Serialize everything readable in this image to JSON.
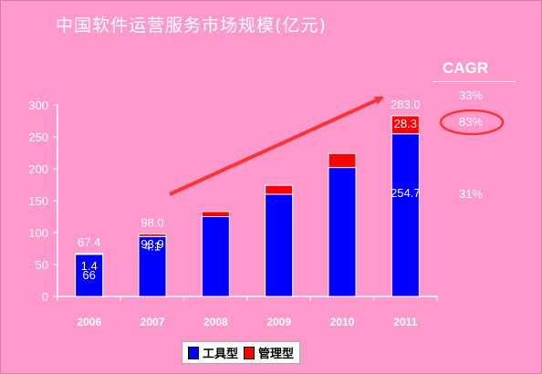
{
  "title": "中国软件运营服务市场规模(亿元)",
  "colors": {
    "background": "#ff99cc",
    "tool": "#0000ff",
    "management": "#ff0000",
    "arrow": "#ff3333",
    "circle": "#ff3333"
  },
  "chart_data": {
    "type": "bar",
    "stacked": true,
    "title": "中国软件运营服务市场规模(亿元)",
    "categories": [
      "2006",
      "2007",
      "2008",
      "2009",
      "2010",
      "2011"
    ],
    "series": [
      {
        "name": "工具型",
        "values": [
          66,
          93.9,
          125,
          160,
          202,
          254.7
        ]
      },
      {
        "name": "管理型",
        "values": [
          1.4,
          4.1,
          8,
          14,
          22,
          28.3
        ]
      }
    ],
    "ylim": [
      0,
      300
    ],
    "yticks": [
      "0",
      "50",
      "100",
      "150",
      "200",
      "250",
      "300"
    ],
    "data_labels": [
      {
        "category": "2006",
        "total": "67.4",
        "management": "1.4",
        "tool": "66"
      },
      {
        "category": "2007",
        "total": "98.0",
        "management": "4.1",
        "tool": "93.9"
      },
      {
        "category": "2011",
        "total": "283.0",
        "management": "28.3",
        "tool": "254.7"
      }
    ],
    "legend": [
      "工具型",
      "管理型"
    ],
    "legend_position": "bottom"
  },
  "cagr": {
    "header": "CAGR",
    "values": [
      "33%",
      "83%",
      "31%"
    ]
  }
}
